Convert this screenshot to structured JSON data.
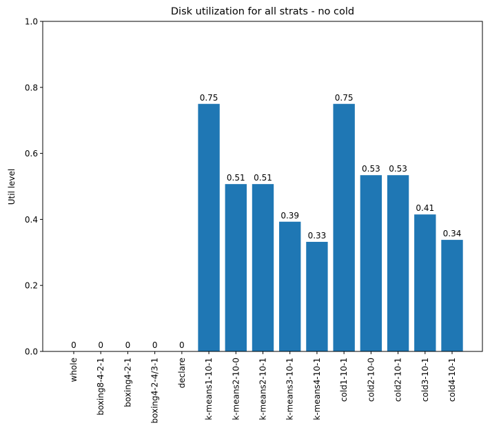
{
  "chart_data": {
    "type": "bar",
    "title": "Disk utilization for all strats - no cold",
    "xlabel": "",
    "ylabel": "Util level",
    "ylim": [
      0,
      1.0
    ],
    "yticks": [
      "0.0",
      "0.2",
      "0.4",
      "0.6",
      "0.8",
      "1.0"
    ],
    "ytick_values": [
      0,
      0.2,
      0.4,
      0.6,
      0.8,
      1.0
    ],
    "grid": false,
    "bar_color": "#1f77b4",
    "categories": [
      "whole",
      "boxing8-4-2-1",
      "boxing4-2-1",
      "boxing4-2-4/3-1",
      "declare",
      "k-means1-10-1",
      "k-means2-10-0",
      "k-means2-10-1",
      "k-means3-10-1",
      "k-means4-10-1",
      "cold1-10-1",
      "cold2-10-0",
      "cold2-10-1",
      "cold3-10-1",
      "cold4-10-1"
    ],
    "values": [
      0,
      0,
      0,
      0,
      0,
      0.75,
      0.507,
      0.507,
      0.393,
      0.332,
      0.75,
      0.534,
      0.534,
      0.415,
      0.338
    ],
    "data_labels": [
      "0",
      "0",
      "0",
      "0",
      "0",
      "0.75",
      "0.51",
      "0.51",
      "0.39",
      "0.33",
      "0.75",
      "0.53",
      "0.53",
      "0.41",
      "0.34"
    ]
  }
}
